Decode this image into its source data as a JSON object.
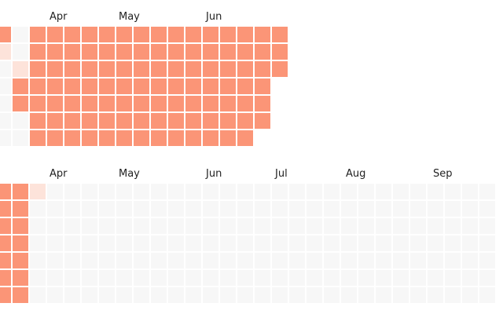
{
  "colors": {
    "filled": "#fb9577",
    "partial": "#fde3da",
    "empty": "#f7f7f7"
  },
  "calendars": [
    {
      "name": "calendar-top",
      "months": [
        "Apr",
        "May",
        "Jun"
      ],
      "columns": [
        [
          "filled",
          "partial",
          "empty",
          "empty",
          "empty",
          "empty",
          "empty"
        ],
        [
          "empty",
          "empty",
          "partial",
          "filled",
          "filled",
          "empty",
          "empty"
        ],
        [
          "filled",
          "filled",
          "filled",
          "filled",
          "filled",
          "filled",
          "filled"
        ],
        [
          "filled",
          "filled",
          "filled",
          "filled",
          "filled",
          "filled",
          "filled"
        ],
        [
          "filled",
          "filled",
          "filled",
          "filled",
          "filled",
          "filled",
          "filled"
        ],
        [
          "filled",
          "filled",
          "filled",
          "filled",
          "filled",
          "filled",
          "filled"
        ],
        [
          "filled",
          "filled",
          "filled",
          "filled",
          "filled",
          "filled",
          "filled"
        ],
        [
          "filled",
          "filled",
          "filled",
          "filled",
          "filled",
          "filled",
          "filled"
        ],
        [
          "filled",
          "filled",
          "filled",
          "filled",
          "filled",
          "filled",
          "filled"
        ],
        [
          "filled",
          "filled",
          "filled",
          "filled",
          "filled",
          "filled",
          "filled"
        ],
        [
          "filled",
          "filled",
          "filled",
          "filled",
          "filled",
          "filled",
          "filled"
        ],
        [
          "filled",
          "filled",
          "filled",
          "filled",
          "filled",
          "filled",
          "filled"
        ],
        [
          "filled",
          "filled",
          "filled",
          "filled",
          "filled",
          "filled",
          "filled"
        ],
        [
          "filled",
          "filled",
          "filled",
          "filled",
          "filled",
          "filled",
          "filled"
        ],
        [
          "filled",
          "filled",
          "filled",
          "filled",
          "filled",
          "filled",
          "filled"
        ],
        [
          "filled",
          "filled",
          "filled",
          "filled",
          "filled",
          "filled",
          null
        ],
        [
          "filled",
          "filled",
          "filled",
          null,
          null,
          null,
          null
        ]
      ]
    },
    {
      "name": "calendar-bottom",
      "months": [
        "Apr",
        "May",
        "Jun",
        "Jul",
        "Aug",
        "Sep"
      ],
      "columns": [
        [
          "filled",
          "filled",
          "filled",
          "filled",
          "filled",
          "filled",
          "filled"
        ],
        [
          "filled",
          "filled",
          "filled",
          "filled",
          "filled",
          "filled",
          "filled"
        ],
        [
          "partial",
          "empty",
          "empty",
          "empty",
          "empty",
          "empty",
          "empty"
        ],
        [
          "empty",
          "empty",
          "empty",
          "empty",
          "empty",
          "empty",
          "empty"
        ],
        [
          "empty",
          "empty",
          "empty",
          "empty",
          "empty",
          "empty",
          "empty"
        ],
        [
          "empty",
          "empty",
          "empty",
          "empty",
          "empty",
          "empty",
          "empty"
        ],
        [
          "empty",
          "empty",
          "empty",
          "empty",
          "empty",
          "empty",
          "empty"
        ],
        [
          "empty",
          "empty",
          "empty",
          "empty",
          "empty",
          "empty",
          "empty"
        ],
        [
          "empty",
          "empty",
          "empty",
          "empty",
          "empty",
          "empty",
          "empty"
        ],
        [
          "empty",
          "empty",
          "empty",
          "empty",
          "empty",
          "empty",
          "empty"
        ],
        [
          "empty",
          "empty",
          "empty",
          "empty",
          "empty",
          "empty",
          "empty"
        ],
        [
          "empty",
          "empty",
          "empty",
          "empty",
          "empty",
          "empty",
          "empty"
        ],
        [
          "empty",
          "empty",
          "empty",
          "empty",
          "empty",
          "empty",
          "empty"
        ],
        [
          "empty",
          "empty",
          "empty",
          "empty",
          "empty",
          "empty",
          "empty"
        ],
        [
          "empty",
          "empty",
          "empty",
          "empty",
          "empty",
          "empty",
          "empty"
        ],
        [
          "empty",
          "empty",
          "empty",
          "empty",
          "empty",
          "empty",
          "empty"
        ],
        [
          "empty",
          "empty",
          "empty",
          "empty",
          "empty",
          "empty",
          "empty"
        ],
        [
          "empty",
          "empty",
          "empty",
          "empty",
          "empty",
          "empty",
          "empty"
        ],
        [
          "empty",
          "empty",
          "empty",
          "empty",
          "empty",
          "empty",
          "empty"
        ],
        [
          "empty",
          "empty",
          "empty",
          "empty",
          "empty",
          "empty",
          "empty"
        ],
        [
          "empty",
          "empty",
          "empty",
          "empty",
          "empty",
          "empty",
          "empty"
        ],
        [
          "empty",
          "empty",
          "empty",
          "empty",
          "empty",
          "empty",
          "empty"
        ],
        [
          "empty",
          "empty",
          "empty",
          "empty",
          "empty",
          "empty",
          "empty"
        ],
        [
          "empty",
          "empty",
          "empty",
          "empty",
          "empty",
          "empty",
          "empty"
        ],
        [
          "empty",
          "empty",
          "empty",
          "empty",
          "empty",
          "empty",
          "empty"
        ],
        [
          "empty",
          "empty",
          "empty",
          "empty",
          "empty",
          "empty",
          "empty"
        ],
        [
          "empty",
          "empty",
          "empty",
          "empty",
          "empty",
          "empty",
          "empty"
        ],
        [
          "empty",
          "empty",
          "empty",
          "empty",
          "empty",
          "empty",
          "empty"
        ],
        [
          "empty",
          "empty",
          "empty",
          "empty",
          "empty",
          "empty",
          "empty"
        ]
      ]
    }
  ]
}
